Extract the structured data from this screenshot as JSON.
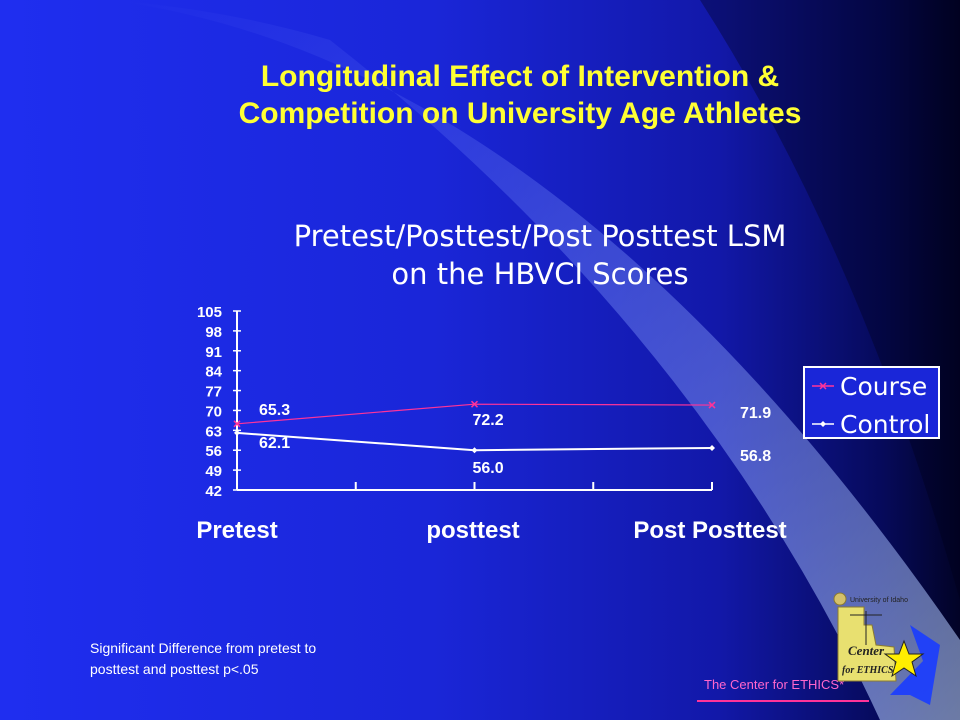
{
  "slide": {
    "title_line1": "Longitudinal Effect of Intervention &",
    "title_line2": "Competition on University Age Athletes",
    "footnote_line1": "Significant Difference from pretest to",
    "footnote_line2": "posttest and posttest p<.05",
    "footer_label": "The Center for ETHICS*"
  },
  "colors": {
    "background": "#1f2ef0",
    "title": "#ffff33",
    "course_line": "#ff3399",
    "control_line": "#ffffff",
    "legend_bg": "#1a26d8"
  },
  "logo": {
    "icon": "center-for-ethics-logo-with-star",
    "text_lines": [
      "University of Idaho",
      "Center",
      "for ETHICS*"
    ]
  },
  "chart_data": {
    "type": "line",
    "title_line1": "Pretest/Posttest/Post Posttest  LSM",
    "title_line2": "on the HBVCI Scores",
    "categories": [
      "Pretest",
      "posttest",
      "Post Posttest"
    ],
    "series": [
      {
        "name": "Course",
        "values": [
          65.3,
          72.2,
          71.9
        ],
        "labels": [
          "65.3",
          "72.2",
          "71.9"
        ],
        "color": "#ff3399",
        "marker": "x"
      },
      {
        "name": "Control",
        "values": [
          62.1,
          56.0,
          56.8
        ],
        "labels": [
          "62.1",
          "56.0",
          "56.8"
        ],
        "color": "#ffffff",
        "marker": "diamond"
      }
    ],
    "ylim": [
      42,
      105
    ],
    "yticks": [
      "42",
      "49",
      "56",
      "63",
      "70",
      "77",
      "84",
      "91",
      "98",
      "105"
    ],
    "legend_position": "right",
    "grid": false
  }
}
